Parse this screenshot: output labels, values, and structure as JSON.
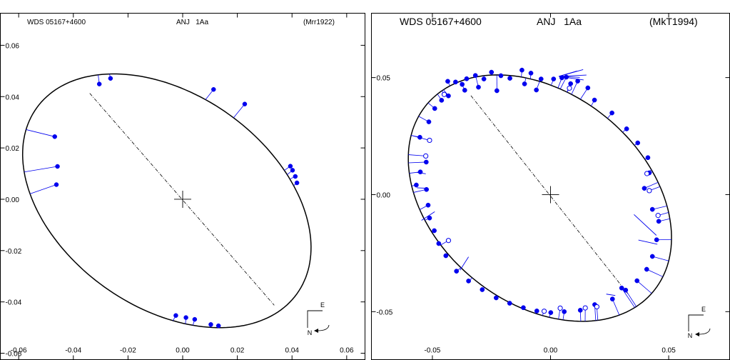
{
  "chart_data": [
    {
      "type": "scatter",
      "header": {
        "left": "WDS 05167+4600",
        "center": "ANJ   1Aa",
        "right": "(Mrr1922)"
      },
      "xlim": [
        -0.0667,
        0.0667
      ],
      "ylim": [
        -0.0625,
        0.0725
      ],
      "xticks": [
        "-0.06",
        "-0.04",
        "-0.02",
        "0.00",
        "0.02",
        "0.04",
        "0.06"
      ],
      "xtick_values": [
        -0.06,
        -0.04,
        -0.02,
        0.0,
        0.02,
        0.04,
        0.06
      ],
      "yticks": [
        "0.06",
        "0.04",
        "0.02",
        "0.00",
        "-0.02",
        "-0.04",
        "-0.06"
      ],
      "ytick_values": [
        0.06,
        0.04,
        0.02,
        0.0,
        -0.02,
        -0.04,
        -0.06
      ],
      "orbit": {
        "cx": -0.0058,
        "cy": -0.0006,
        "a": 0.0599,
        "b": 0.0405,
        "rotation_deg": -40
      },
      "line_of_nodes": [
        [
          -0.034,
          0.0413
        ],
        [
          0.0335,
          -0.0413
        ]
      ],
      "filled_points": [
        [
          -0.0468,
          0.0244
        ],
        [
          -0.0458,
          0.0128
        ],
        [
          -0.0462,
          0.0057
        ],
        [
          -0.0305,
          0.0449
        ],
        [
          -0.0264,
          0.0471
        ],
        [
          0.0113,
          0.0428
        ],
        [
          0.0227,
          0.0371
        ],
        [
          0.0394,
          0.0129
        ],
        [
          0.0402,
          0.0113
        ],
        [
          0.0412,
          0.0089
        ],
        [
          0.0418,
          0.0064
        ],
        [
          -0.0025,
          -0.0453
        ],
        [
          0.0012,
          -0.0461
        ],
        [
          0.0044,
          -0.0468
        ],
        [
          0.0103,
          -0.0488
        ],
        [
          0.0131,
          -0.0493
        ]
      ],
      "compass": {
        "east": "E",
        "north": "N"
      }
    },
    {
      "type": "scatter",
      "header": {
        "left": "WDS 05167+4600",
        "center": "ANJ   1Aa",
        "right": "(MkT1994)"
      },
      "xlim": [
        -0.0758,
        0.0758
      ],
      "ylim": [
        -0.0705,
        0.0775
      ],
      "xticks": [
        "-0.05",
        "0.00",
        "0.05"
      ],
      "xtick_values": [
        -0.05,
        0.0,
        0.05
      ],
      "yticks": [
        "0.05",
        "0.00",
        "-0.05"
      ],
      "ytick_values": [
        0.05,
        0.0,
        -0.05
      ],
      "orbit": {
        "cx": -0.0045,
        "cy": -0.0015,
        "a": 0.0624,
        "b": 0.0445,
        "rotation_deg": -40
      },
      "line_of_nodes": [
        [
          -0.0337,
          0.0423
        ],
        [
          0.0327,
          -0.0423
        ]
      ],
      "filled_points": [
        [
          -0.0435,
          0.0484
        ],
        [
          -0.0402,
          0.0481
        ],
        [
          -0.0374,
          0.0471
        ],
        [
          -0.0355,
          0.0495
        ],
        [
          -0.0318,
          0.0509
        ],
        [
          -0.0282,
          0.0494
        ],
        [
          -0.025,
          0.0523
        ],
        [
          -0.021,
          0.0508
        ],
        [
          -0.0172,
          0.0497
        ],
        [
          -0.0121,
          0.0532
        ],
        [
          -0.0083,
          0.0519
        ],
        [
          -0.004,
          0.0494
        ],
        [
          0.0013,
          0.0494
        ],
        [
          0.0048,
          0.0499
        ],
        [
          0.0085,
          0.0474
        ],
        [
          -0.006,
          0.0447
        ],
        [
          -0.0432,
          0.0422
        ],
        [
          -0.0461,
          0.0403
        ],
        [
          -0.049,
          0.0368
        ],
        [
          -0.0515,
          0.0311
        ],
        [
          -0.0553,
          0.0245
        ],
        [
          -0.0526,
          0.0139
        ],
        [
          -0.0551,
          0.0097
        ],
        [
          -0.0568,
          0.0041
        ],
        [
          -0.0525,
          0.0022
        ],
        [
          -0.0518,
          -0.0045
        ],
        [
          -0.0512,
          -0.01
        ],
        [
          -0.0492,
          -0.0154
        ],
        [
          -0.0473,
          -0.0209
        ],
        [
          -0.0443,
          -0.0261
        ],
        [
          -0.0398,
          -0.0327
        ],
        [
          -0.0347,
          -0.0369
        ],
        [
          -0.0289,
          -0.0406
        ],
        [
          -0.023,
          -0.0441
        ],
        [
          -0.0173,
          -0.0464
        ],
        [
          -0.0115,
          -0.0483
        ],
        [
          -0.0058,
          -0.0497
        ],
        [
          0.0001,
          -0.0504
        ],
        [
          0.0058,
          -0.05
        ],
        [
          0.0126,
          -0.0494
        ],
        [
          0.0187,
          -0.047
        ],
        [
          0.0262,
          -0.0446
        ],
        [
          0.0318,
          -0.0408
        ],
        [
          0.0366,
          -0.0368
        ],
        [
          0.0407,
          -0.0319
        ],
        [
          0.0431,
          -0.0264
        ],
        [
          0.0449,
          -0.0193
        ],
        [
          0.0458,
          -0.0114
        ],
        [
          0.0431,
          -0.0063
        ],
        [
          0.0397,
          0.0027
        ],
        [
          0.0418,
          0.0093
        ],
        [
          0.0412,
          0.0158
        ],
        [
          0.0369,
          0.0221
        ],
        [
          0.0322,
          0.0281
        ],
        [
          0.026,
          0.0349
        ],
        [
          0.0186,
          0.0404
        ],
        [
          0.0158,
          0.0456
        ],
        [
          0.0115,
          0.0485
        ],
        [
          0.0067,
          0.0502
        ],
        [
          -0.0227,
          0.0444
        ],
        [
          -0.0305,
          0.0459
        ],
        [
          -0.011,
          0.0473
        ],
        [
          -0.0363,
          0.0446
        ],
        [
          0.0301,
          -0.0399
        ]
      ],
      "open_points": [
        [
          -0.045,
          0.0428
        ],
        [
          -0.0528,
          0.0165
        ],
        [
          -0.0512,
          0.0232
        ],
        [
          -0.0432,
          -0.0196
        ],
        [
          0.0418,
          0.0017
        ],
        [
          0.0455,
          -0.0089
        ],
        [
          0.0408,
          0.009
        ],
        [
          0.008,
          0.0455
        ],
        [
          0.0041,
          -0.0485
        ],
        [
          0.0147,
          -0.0484
        ],
        [
          0.0196,
          -0.0479
        ],
        [
          -0.0027,
          -0.0498
        ]
      ],
      "residual_lines": [
        [
          [
            0.0138,
            0.0534
          ],
          [
            0.0035,
            0.0505
          ]
        ],
        [
          [
            0.0152,
            0.0511
          ],
          [
            0.0035,
            0.0505
          ]
        ],
        [
          [
            0.014,
            0.049
          ],
          [
            0.0035,
            0.0505
          ]
        ],
        [
          [
            0.0112,
            0.0528
          ],
          [
            0.0035,
            0.0505
          ]
        ],
        [
          [
            0.0124,
            0.0501
          ],
          [
            0.0035,
            0.0505
          ]
        ],
        [
          [
            -0.0528,
            0.0089
          ],
          [
            -0.0567,
            0.0095
          ]
        ],
        [
          [
            -0.052,
            0.0027
          ],
          [
            -0.0565,
            0.0029
          ]
        ],
        [
          [
            -0.049,
            -0.0073
          ],
          [
            -0.0546,
            -0.011
          ]
        ],
        [
          [
            0.0353,
            -0.0085
          ],
          [
            0.0448,
            -0.0174
          ]
        ],
        [
          [
            0.0372,
            -0.0194
          ],
          [
            0.0452,
            -0.0212
          ]
        ],
        [
          [
            -0.0347,
            -0.0266
          ],
          [
            -0.0383,
            -0.0323
          ]
        ],
        [
          [
            0.0236,
            -0.0425
          ],
          [
            0.0274,
            -0.0431
          ]
        ]
      ],
      "compass": {
        "east": "E",
        "north": "N"
      }
    }
  ]
}
